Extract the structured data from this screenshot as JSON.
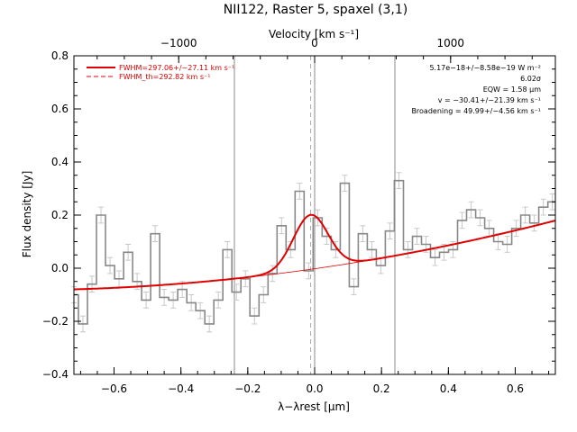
{
  "chart_data": {
    "type": "line",
    "title": "NII122, Raster 5, spaxel (3,1)",
    "xlabel": "λ−λrest [μm]",
    "ylabel": "Flux density [Jy]",
    "top_axis_label": "Velocity [km s⁻¹]",
    "xlim": [
      -0.72,
      0.72
    ],
    "ylim": [
      -0.4,
      0.8
    ],
    "x_ticks": [
      -0.6,
      -0.4,
      -0.2,
      0.0,
      0.2,
      0.4,
      0.6
    ],
    "x_tick_labels": [
      "−0.6",
      "−0.4",
      "−0.2",
      "0.0",
      "0.2",
      "0.4",
      "0.6"
    ],
    "y_ticks": [
      -0.4,
      -0.2,
      0.0,
      0.2,
      0.4,
      0.6,
      0.8
    ],
    "y_tick_labels": [
      "−0.4",
      "−0.2",
      "0.0",
      "0.2",
      "0.4",
      "0.6",
      "0.8"
    ],
    "top_ticks_kms": [
      -1000,
      0,
      1000
    ],
    "top_tick_labels": [
      "−1000",
      "0",
      "1000"
    ],
    "rest_wavelength_um": 121.9,
    "legend": {
      "position": "top-left",
      "entries": [
        {
          "label": "FWHM=297.06+/−27.11 km s⁻¹",
          "style": "solid",
          "color": "#e00000"
        },
        {
          "label": "FWHM_th=292.82 km s⁻¹",
          "style": "dashed",
          "color": "#e00000"
        }
      ]
    },
    "annotations": [
      "5.17e−18+/−8.58e−19 W m⁻²",
      "6.02σ",
      "EQW = 1.58 μm",
      "v = −30.41+/−21.39 km s⁻¹",
      "Broadening = 49.99+/−4.56 km s⁻¹"
    ],
    "vertical_lines": [
      {
        "x": -0.24,
        "color": "#888888",
        "style": "solid"
      },
      {
        "x": -0.012,
        "color": "#aaaaaa",
        "style": "dashed"
      },
      {
        "x": 0.0,
        "color": "#888888",
        "style": "solid"
      },
      {
        "x": 0.24,
        "color": "#888888",
        "style": "solid"
      }
    ],
    "data_series": {
      "name": "",
      "color": "#888888",
      "x": [
        -0.72,
        -0.693,
        -0.666,
        -0.639,
        -0.612,
        -0.585,
        -0.558,
        -0.531,
        -0.504,
        -0.477,
        -0.45,
        -0.423,
        -0.396,
        -0.369,
        -0.342,
        -0.315,
        -0.288,
        -0.261,
        -0.234,
        -0.207,
        -0.18,
        -0.153,
        -0.126,
        -0.099,
        -0.072,
        -0.045,
        -0.018,
        0.009,
        0.036,
        0.063,
        0.09,
        0.117,
        0.144,
        0.171,
        0.198,
        0.225,
        0.252,
        0.279,
        0.306,
        0.333,
        0.36,
        0.387,
        0.414,
        0.441,
        0.468,
        0.495,
        0.522,
        0.549,
        0.576,
        0.603,
        0.63,
        0.657,
        0.684,
        0.711
      ],
      "y": [
        -0.1,
        -0.21,
        -0.06,
        0.2,
        0.01,
        -0.04,
        0.06,
        -0.05,
        -0.12,
        0.13,
        -0.11,
        -0.12,
        -0.08,
        -0.13,
        -0.16,
        -0.21,
        -0.12,
        0.07,
        -0.09,
        -0.04,
        -0.18,
        -0.1,
        -0.02,
        0.16,
        0.07,
        0.29,
        -0.01,
        0.19,
        0.12,
        0.07,
        0.32,
        -0.07,
        0.13,
        0.07,
        0.01,
        0.14,
        0.33,
        0.07,
        0.12,
        0.09,
        0.04,
        0.06,
        0.07,
        0.18,
        0.22,
        0.19,
        0.15,
        0.1,
        0.09,
        0.15,
        0.2,
        0.17,
        0.23,
        0.25
      ],
      "err": 0.03
    },
    "fit_model": {
      "baseline_slope": 0.18,
      "baseline_curve": 0.1,
      "baseline_offset": -0.002,
      "gaussian_amplitude": 0.205,
      "gaussian_center": -0.012,
      "gaussian_fwhm": 0.122,
      "color": "#e00000"
    }
  }
}
